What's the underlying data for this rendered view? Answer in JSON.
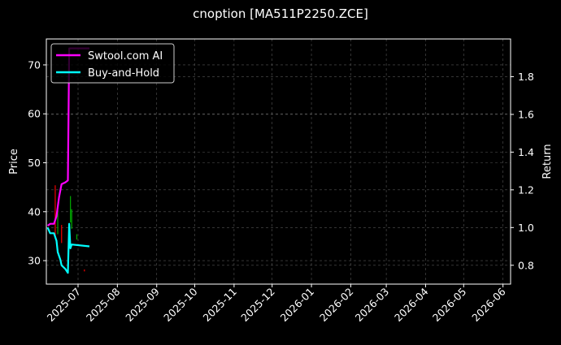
{
  "chart_data": {
    "type": "line",
    "title": "cnoption [MA511P2250.ZCE]",
    "ylabel": "Price",
    "ylabel_right": "Return",
    "xlim": [
      "2025-06-06",
      "2026-06-07"
    ],
    "ylim": [
      25.2,
      75.3
    ],
    "ylim_right": [
      0.7,
      2.0
    ],
    "x_ticks": [
      "2025-07",
      "2025-08",
      "2025-09",
      "2025-10",
      "2025-11",
      "2025-12",
      "2026-01",
      "2026-02",
      "2026-03",
      "2026-04",
      "2026-05",
      "2026-06"
    ],
    "y_ticks": [
      30,
      40,
      50,
      60,
      70
    ],
    "y_ticks_right": [
      0.8,
      1.0,
      1.2,
      1.4,
      1.6,
      1.8
    ],
    "grid": true,
    "legend_position": "top-left",
    "colors": {
      "up": "#00a000",
      "down": "#e00000",
      "strategy": "#ff00ff",
      "benchmark": "#00ffff",
      "background": "#000000",
      "grid": "#555555"
    },
    "candles": [
      {
        "date": "2025-06-13",
        "high": 45.4,
        "low": 35.1,
        "dir": "down"
      },
      {
        "date": "2025-06-15",
        "high": 40.3,
        "low": 35.4,
        "dir": "up"
      },
      {
        "date": "2025-06-18",
        "high": 37.3,
        "low": 33.6,
        "dir": "down"
      },
      {
        "date": "2025-06-25",
        "high": 43.2,
        "low": 37.8,
        "dir": "up"
      },
      {
        "date": "2025-06-26",
        "high": 40.5,
        "low": 36.5,
        "dir": "up"
      },
      {
        "date": "2025-06-30",
        "high": 35.4,
        "low": 34.3,
        "dir": "up"
      },
      {
        "date": "2025-07-06",
        "high": 28.2,
        "low": 27.8,
        "dir": "down"
      }
    ],
    "series": [
      {
        "name": "Swtool.com AI",
        "axis": "right",
        "color": "#ff00ff",
        "points": [
          [
            "2025-06-07",
            1.01
          ],
          [
            "2025-06-09",
            1.02
          ],
          [
            "2025-06-12",
            1.02
          ],
          [
            "2025-06-14",
            1.06
          ],
          [
            "2025-06-16",
            1.16
          ],
          [
            "2025-06-18",
            1.23
          ],
          [
            "2025-06-21",
            1.24
          ],
          [
            "2025-06-23",
            1.25
          ],
          [
            "2025-06-24",
            1.95
          ],
          [
            "2025-07-10",
            1.95
          ]
        ]
      },
      {
        "name": "Buy-and-Hold",
        "axis": "right",
        "color": "#00ffff",
        "points": [
          [
            "2025-06-07",
            1.0
          ],
          [
            "2025-06-09",
            0.97
          ],
          [
            "2025-06-12",
            0.97
          ],
          [
            "2025-06-14",
            0.93
          ],
          [
            "2025-06-15",
            0.87
          ],
          [
            "2025-06-17",
            0.83
          ],
          [
            "2025-06-18",
            0.8
          ],
          [
            "2025-06-21",
            0.78
          ],
          [
            "2025-06-23",
            0.76
          ],
          [
            "2025-06-24",
            1.02
          ],
          [
            "2025-06-25",
            0.89
          ],
          [
            "2025-06-26",
            0.91
          ],
          [
            "2025-07-10",
            0.9
          ]
        ]
      }
    ]
  }
}
